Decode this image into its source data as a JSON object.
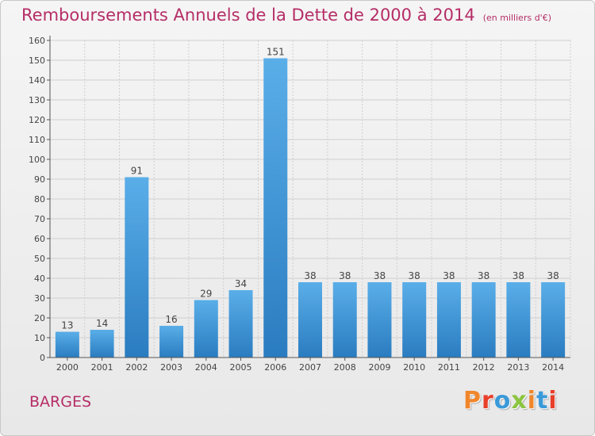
{
  "title": "Remboursements Annuels de la Dette de 2000 à 2014",
  "subtitle": "(en milliers d'€)",
  "commune": "BARGES",
  "brand": {
    "text": "Proxiti",
    "colors": [
      "#f0862b",
      "#e83f2a",
      "#3a9ad9",
      "#8bc53f",
      "#f0862b",
      "#3a9ad9",
      "#e83f2a"
    ]
  },
  "colors": {
    "title": "#b52d66",
    "bar_top": "#5aaee8",
    "bar_bottom": "#2a7cc0",
    "axis": "#555555",
    "grid": "#cfcfcf"
  },
  "chart_data": {
    "type": "bar",
    "title": "Remboursements Annuels de la Dette de 2000 à 2014",
    "subtitle": "(en milliers d'€)",
    "xlabel": "",
    "ylabel": "",
    "categories": [
      "2000",
      "2001",
      "2002",
      "2003",
      "2004",
      "2005",
      "2006",
      "2007",
      "2008",
      "2009",
      "2010",
      "2011",
      "2012",
      "2013",
      "2014"
    ],
    "values": [
      13,
      14,
      91,
      16,
      29,
      34,
      151,
      38,
      38,
      38,
      38,
      38,
      38,
      38,
      38
    ],
    "data_labels": [
      "13",
      "14",
      "91",
      "16",
      "29",
      "34",
      "151",
      "38",
      "38",
      "38",
      "38",
      "38",
      "38",
      "38",
      "38"
    ],
    "ylim": [
      0,
      160
    ],
    "yticks": [
      0,
      10,
      20,
      30,
      40,
      50,
      60,
      70,
      80,
      90,
      100,
      110,
      120,
      130,
      140,
      150,
      160
    ],
    "grid": true,
    "legend": "none"
  }
}
